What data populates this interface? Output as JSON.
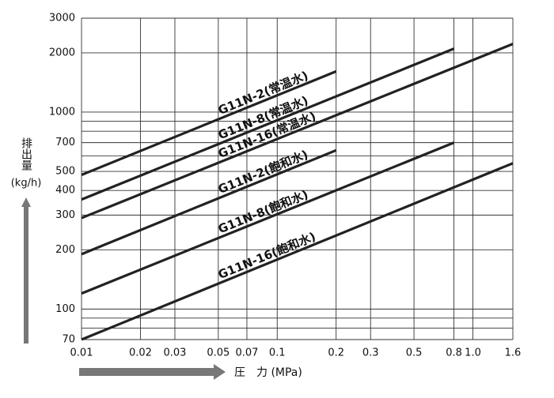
{
  "chart_data": {
    "type": "line",
    "log_x": true,
    "log_y": true,
    "grid": true,
    "y_label": "排出量",
    "y_unit": "(kg/h)",
    "x_label": "圧　力 (MPa)",
    "xlim": [
      0.01,
      1.6
    ],
    "ylim": [
      70,
      3000
    ],
    "xticks": [
      0.01,
      0.02,
      0.03,
      0.05,
      0.07,
      0.1,
      0.2,
      0.3,
      0.5,
      0.8,
      {
        "value": 1,
        "label": "1.0"
      },
      1.6
    ],
    "yticks": [
      70,
      100,
      200,
      300,
      400,
      500,
      700,
      1000,
      2000,
      3000
    ],
    "yminor_grid": [
      80,
      90,
      600,
      800,
      900
    ],
    "color": "#222",
    "series": [
      {
        "name": "G11N-2(常温水)",
        "x": [
          0.01,
          0.2
        ],
        "values": [
          480,
          1610
        ]
      },
      {
        "name": "G11N-8(常温水)",
        "x": [
          0.01,
          0.8
        ],
        "values": [
          360,
          2100
        ]
      },
      {
        "name": "G11N-16(常温水)",
        "x": [
          0.01,
          1.6
        ],
        "values": [
          290,
          2220
        ]
      },
      {
        "name": "G11N-2(飽和水)",
        "x": [
          0.01,
          0.2
        ],
        "values": [
          190,
          640
        ]
      },
      {
        "name": "G11N-8(飽和水)",
        "x": [
          0.01,
          0.8
        ],
        "values": [
          120,
          700
        ]
      },
      {
        "name": "G11N-16(飽和水)",
        "x": [
          0.01,
          1.6
        ],
        "values": [
          70,
          550
        ]
      }
    ]
  }
}
